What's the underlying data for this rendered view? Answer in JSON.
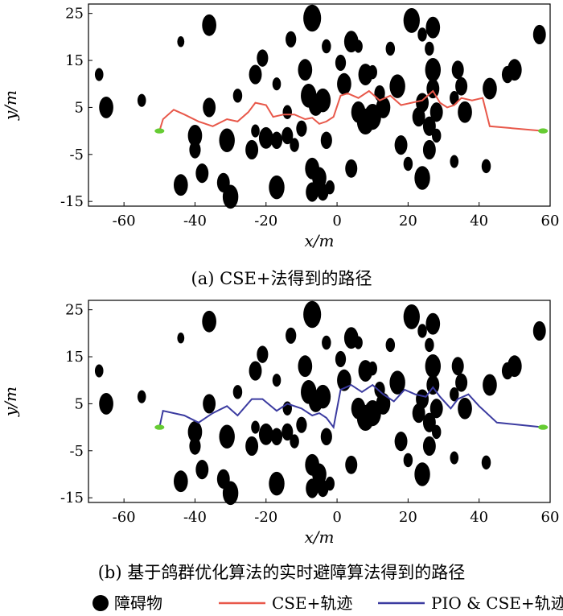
{
  "chart_data": [
    {
      "type": "scatter",
      "title": "",
      "caption": "(a) CSE+法得到的路径",
      "xlabel": "x/m",
      "ylabel": "y/m",
      "xlim": [
        -70,
        60
      ],
      "ylim": [
        -16,
        27
      ],
      "xticks": [
        "-60",
        "-40",
        "-20",
        "0",
        "20",
        "40",
        "60"
      ],
      "yticks": [
        "25",
        "15",
        "5",
        "-5",
        "-15"
      ],
      "obstacles": [
        {
          "x": -67,
          "y": 12,
          "r": 1.2
        },
        {
          "x": -65,
          "y": 5,
          "r": 2.0
        },
        {
          "x": -55,
          "y": 6.5,
          "r": 1.2
        },
        {
          "x": -44,
          "y": 19,
          "r": 1.0
        },
        {
          "x": -36,
          "y": 22.5,
          "r": 2.0
        },
        {
          "x": -36,
          "y": 5,
          "r": 1.8
        },
        {
          "x": -28,
          "y": 7.5,
          "r": 1.3
        },
        {
          "x": -21,
          "y": 15.5,
          "r": 1.6
        },
        {
          "x": -23,
          "y": 12,
          "r": 1.8
        },
        {
          "x": -17,
          "y": 10,
          "r": 1.2
        },
        {
          "x": -14,
          "y": 4,
          "r": 1.3
        },
        {
          "x": -13,
          "y": 19.5,
          "r": 1.5
        },
        {
          "x": -9,
          "y": 13,
          "r": 2.0
        },
        {
          "x": -8,
          "y": 7.5,
          "r": 2.2
        },
        {
          "x": -6,
          "y": 5.5,
          "r": 2.0
        },
        {
          "x": -4,
          "y": 6.5,
          "r": 2.2
        },
        {
          "x": -7,
          "y": 24,
          "r": 2.5
        },
        {
          "x": -3,
          "y": 18,
          "r": 1.3
        },
        {
          "x": -40,
          "y": -1,
          "r": 2.0
        },
        {
          "x": -40,
          "y": -4,
          "r": 1.6
        },
        {
          "x": -31,
          "y": -2,
          "r": 2.2
        },
        {
          "x": -24,
          "y": -4,
          "r": 1.8
        },
        {
          "x": -20,
          "y": -1.5,
          "r": 2.0
        },
        {
          "x": -17,
          "y": -2,
          "r": 1.6
        },
        {
          "x": -14,
          "y": -1,
          "r": 1.6
        },
        {
          "x": -12,
          "y": -3,
          "r": 1.3
        },
        {
          "x": -10,
          "y": 0.5,
          "r": 1.5
        },
        {
          "x": -23,
          "y": 0,
          "r": 1.2
        },
        {
          "x": -38,
          "y": -9,
          "r": 1.8
        },
        {
          "x": -44,
          "y": -11.5,
          "r": 2.0
        },
        {
          "x": -32,
          "y": -11,
          "r": 1.8
        },
        {
          "x": -30,
          "y": -14,
          "r": 2.2
        },
        {
          "x": -17,
          "y": -12,
          "r": 2.2
        },
        {
          "x": -7,
          "y": -8,
          "r": 2.0
        },
        {
          "x": -5,
          "y": -10,
          "r": 2.0
        },
        {
          "x": -7,
          "y": -13,
          "r": 1.8
        },
        {
          "x": -4,
          "y": -13,
          "r": 1.6
        },
        {
          "x": -3,
          "y": -2,
          "r": 1.6
        },
        {
          "x": 1,
          "y": 14.5,
          "r": 1.5
        },
        {
          "x": 2,
          "y": 10,
          "r": 2.0
        },
        {
          "x": 4,
          "y": 19,
          "r": 2.0
        },
        {
          "x": 6,
          "y": 18,
          "r": 1.2
        },
        {
          "x": 8,
          "y": 12,
          "r": 2.0
        },
        {
          "x": 10,
          "y": 12.5,
          "r": 1.3
        },
        {
          "x": 6,
          "y": 4,
          "r": 2.0
        },
        {
          "x": 8,
          "y": 2,
          "r": 2.4
        },
        {
          "x": 10,
          "y": 3,
          "r": 2.4
        },
        {
          "x": 13,
          "y": 5,
          "r": 2.0
        },
        {
          "x": 12,
          "y": 8,
          "r": 1.5
        },
        {
          "x": 17,
          "y": 9.5,
          "r": 2.2
        },
        {
          "x": 15,
          "y": 17.5,
          "r": 1.3
        },
        {
          "x": 21,
          "y": 23.5,
          "r": 2.3
        },
        {
          "x": 24,
          "y": 20.5,
          "r": 1.3
        },
        {
          "x": 27,
          "y": 22,
          "r": 2.0
        },
        {
          "x": 26,
          "y": 17.5,
          "r": 1.3
        },
        {
          "x": 27,
          "y": 13,
          "r": 2.2
        },
        {
          "x": 27,
          "y": 9,
          "r": 1.8
        },
        {
          "x": 24,
          "y": 6,
          "r": 1.8
        },
        {
          "x": 23,
          "y": 3,
          "r": 1.8
        },
        {
          "x": 26,
          "y": 1,
          "r": 1.8
        },
        {
          "x": 28,
          "y": 4,
          "r": 1.8
        },
        {
          "x": 28,
          "y": -1,
          "r": 1.3
        },
        {
          "x": 26,
          "y": -4,
          "r": 1.8
        },
        {
          "x": 24,
          "y": -10,
          "r": 2.2
        },
        {
          "x": 33,
          "y": 7,
          "r": 1.3
        },
        {
          "x": 36,
          "y": 4,
          "r": 2.0
        },
        {
          "x": 35,
          "y": 9.5,
          "r": 1.7
        },
        {
          "x": 34,
          "y": 13,
          "r": 1.7
        },
        {
          "x": 43,
          "y": 9,
          "r": 2.0
        },
        {
          "x": 48,
          "y": 12,
          "r": 1.6
        },
        {
          "x": 50,
          "y": 13,
          "r": 2.0
        },
        {
          "x": 57,
          "y": 20.5,
          "r": 1.8
        },
        {
          "x": 42,
          "y": -7.5,
          "r": 1.3
        },
        {
          "x": 33,
          "y": -6.5,
          "r": 1.2
        },
        {
          "x": 4,
          "y": -8,
          "r": 1.7
        },
        {
          "x": 18,
          "y": -3,
          "r": 1.8
        },
        {
          "x": 20,
          "y": -7,
          "r": 1.3
        },
        {
          "x": -2,
          "y": -12,
          "r": 1.3
        }
      ],
      "series": [
        {
          "name": "CSE+轨迹",
          "color": "#e8584a",
          "x": [
            -50,
            -49,
            -46,
            -43,
            -39,
            -35,
            -31,
            -28,
            -25,
            -23,
            -20,
            -18,
            -15,
            -12,
            -9,
            -7,
            -5,
            -3,
            -1,
            1,
            3,
            6,
            9,
            12,
            15,
            18,
            21,
            24,
            27,
            29,
            31,
            33,
            35,
            38,
            41,
            43,
            58
          ],
          "y": [
            0,
            2.5,
            4.5,
            3.5,
            2,
            1,
            2.5,
            2,
            4,
            6,
            5.5,
            3,
            3.5,
            3.5,
            2.5,
            2.8,
            1.5,
            2,
            3,
            7.5,
            8,
            7,
            8.5,
            6.5,
            7.5,
            5.5,
            6,
            6.5,
            8.5,
            6,
            5,
            5.5,
            7,
            6.5,
            7,
            1,
            0
          ]
        }
      ],
      "start_marker": {
        "x": -50,
        "y": 0,
        "color": "#66cc33"
      },
      "end_marker": {
        "x": 58,
        "y": 0,
        "color": "#66cc33"
      }
    },
    {
      "type": "scatter",
      "title": "",
      "caption": "(b) 基于鸽群优化算法的实时避障算法得到的路径",
      "xlabel": "x/m",
      "ylabel": "y/m",
      "xlim": [
        -70,
        60
      ],
      "ylim": [
        -16,
        27
      ],
      "xticks": [
        "-60",
        "-40",
        "-20",
        "0",
        "20",
        "40",
        "60"
      ],
      "yticks": [
        "25",
        "15",
        "5",
        "-5",
        "-15"
      ],
      "obstacles": [
        {
          "x": -67,
          "y": 12,
          "r": 1.2
        },
        {
          "x": -65,
          "y": 5,
          "r": 2.0
        },
        {
          "x": -55,
          "y": 6.5,
          "r": 1.2
        },
        {
          "x": -44,
          "y": 19,
          "r": 1.0
        },
        {
          "x": -36,
          "y": 22.5,
          "r": 2.0
        },
        {
          "x": -36,
          "y": 5,
          "r": 1.8
        },
        {
          "x": -28,
          "y": 7.5,
          "r": 1.3
        },
        {
          "x": -21,
          "y": 15.5,
          "r": 1.6
        },
        {
          "x": -23,
          "y": 12,
          "r": 1.8
        },
        {
          "x": -17,
          "y": 10,
          "r": 1.2
        },
        {
          "x": -14,
          "y": 4,
          "r": 1.3
        },
        {
          "x": -13,
          "y": 19.5,
          "r": 1.5
        },
        {
          "x": -9,
          "y": 13,
          "r": 2.0
        },
        {
          "x": -8,
          "y": 7.5,
          "r": 2.2
        },
        {
          "x": -6,
          "y": 5.5,
          "r": 2.0
        },
        {
          "x": -4,
          "y": 6.5,
          "r": 2.2
        },
        {
          "x": -7,
          "y": 24,
          "r": 2.5
        },
        {
          "x": -3,
          "y": 18,
          "r": 1.3
        },
        {
          "x": -40,
          "y": -1,
          "r": 2.0
        },
        {
          "x": -40,
          "y": -4,
          "r": 1.6
        },
        {
          "x": -31,
          "y": -2,
          "r": 2.2
        },
        {
          "x": -24,
          "y": -4,
          "r": 1.8
        },
        {
          "x": -20,
          "y": -1.5,
          "r": 2.0
        },
        {
          "x": -17,
          "y": -2,
          "r": 1.6
        },
        {
          "x": -14,
          "y": -1,
          "r": 1.6
        },
        {
          "x": -12,
          "y": -3,
          "r": 1.3
        },
        {
          "x": -10,
          "y": 0.5,
          "r": 1.5
        },
        {
          "x": -23,
          "y": 0,
          "r": 1.2
        },
        {
          "x": -38,
          "y": -9,
          "r": 1.8
        },
        {
          "x": -44,
          "y": -11.5,
          "r": 2.0
        },
        {
          "x": -32,
          "y": -11,
          "r": 1.8
        },
        {
          "x": -30,
          "y": -14,
          "r": 2.2
        },
        {
          "x": -17,
          "y": -12,
          "r": 2.2
        },
        {
          "x": -7,
          "y": -8,
          "r": 2.0
        },
        {
          "x": -5,
          "y": -10,
          "r": 2.0
        },
        {
          "x": -7,
          "y": -13,
          "r": 1.8
        },
        {
          "x": -4,
          "y": -13,
          "r": 1.6
        },
        {
          "x": -3,
          "y": -2,
          "r": 1.6
        },
        {
          "x": 1,
          "y": 14.5,
          "r": 1.5
        },
        {
          "x": 2,
          "y": 10,
          "r": 2.0
        },
        {
          "x": 4,
          "y": 19,
          "r": 2.0
        },
        {
          "x": 6,
          "y": 18,
          "r": 1.2
        },
        {
          "x": 8,
          "y": 12,
          "r": 2.0
        },
        {
          "x": 10,
          "y": 12.5,
          "r": 1.3
        },
        {
          "x": 6,
          "y": 4,
          "r": 2.0
        },
        {
          "x": 8,
          "y": 2,
          "r": 2.4
        },
        {
          "x": 10,
          "y": 3,
          "r": 2.4
        },
        {
          "x": 13,
          "y": 5,
          "r": 2.0
        },
        {
          "x": 12,
          "y": 8,
          "r": 1.5
        },
        {
          "x": 17,
          "y": 9.5,
          "r": 2.2
        },
        {
          "x": 15,
          "y": 17.5,
          "r": 1.3
        },
        {
          "x": 21,
          "y": 23.5,
          "r": 2.3
        },
        {
          "x": 24,
          "y": 20.5,
          "r": 1.3
        },
        {
          "x": 27,
          "y": 22,
          "r": 2.0
        },
        {
          "x": 26,
          "y": 17.5,
          "r": 1.3
        },
        {
          "x": 27,
          "y": 13,
          "r": 2.2
        },
        {
          "x": 27,
          "y": 9,
          "r": 1.8
        },
        {
          "x": 24,
          "y": 6,
          "r": 1.8
        },
        {
          "x": 23,
          "y": 3,
          "r": 1.8
        },
        {
          "x": 26,
          "y": 1,
          "r": 1.8
        },
        {
          "x": 28,
          "y": 4,
          "r": 1.8
        },
        {
          "x": 28,
          "y": -1,
          "r": 1.3
        },
        {
          "x": 26,
          "y": -4,
          "r": 1.8
        },
        {
          "x": 24,
          "y": -10,
          "r": 2.2
        },
        {
          "x": 33,
          "y": 7,
          "r": 1.3
        },
        {
          "x": 36,
          "y": 4,
          "r": 2.0
        },
        {
          "x": 35,
          "y": 9.5,
          "r": 1.7
        },
        {
          "x": 34,
          "y": 13,
          "r": 1.7
        },
        {
          "x": 43,
          "y": 9,
          "r": 2.0
        },
        {
          "x": 48,
          "y": 12,
          "r": 1.6
        },
        {
          "x": 50,
          "y": 13,
          "r": 2.0
        },
        {
          "x": 57,
          "y": 20.5,
          "r": 1.8
        },
        {
          "x": 42,
          "y": -7.5,
          "r": 1.3
        },
        {
          "x": 33,
          "y": -6.5,
          "r": 1.2
        },
        {
          "x": 4,
          "y": -8,
          "r": 1.7
        },
        {
          "x": 18,
          "y": -3,
          "r": 1.8
        },
        {
          "x": 20,
          "y": -7,
          "r": 1.3
        },
        {
          "x": -2,
          "y": -12,
          "r": 1.3
        }
      ],
      "series": [
        {
          "name": "PIO & CSE+轨迹",
          "color": "#3b3ba0",
          "x": [
            -50,
            -49,
            -43,
            -39,
            -35,
            -31,
            -28,
            -24,
            -21,
            -17,
            -14,
            -10,
            -7,
            -5,
            -3,
            -1,
            1,
            4,
            7,
            10,
            13,
            16,
            19,
            22,
            25,
            27,
            29,
            32,
            34,
            37,
            40,
            45,
            58
          ],
          "y": [
            0,
            3.5,
            2.5,
            1,
            3,
            4.5,
            2.5,
            6,
            6,
            3.5,
            5,
            4,
            2.5,
            3,
            2,
            0,
            8,
            9,
            7.5,
            9,
            7,
            5.5,
            8,
            7,
            6.5,
            8.5,
            6.5,
            4,
            6,
            7,
            4.5,
            1,
            0
          ]
        }
      ],
      "start_marker": {
        "x": -50,
        "y": 0,
        "color": "#66cc33"
      },
      "end_marker": {
        "x": 58,
        "y": 0,
        "color": "#66cc33"
      }
    }
  ],
  "legend": [
    {
      "label": "障碍物",
      "kind": "dot",
      "color": "#000000"
    },
    {
      "label": "CSE+轨迹",
      "kind": "line",
      "color": "#e8584a"
    },
    {
      "label": "PIO & CSE+轨迹",
      "kind": "line",
      "color": "#3b3ba0"
    }
  ]
}
